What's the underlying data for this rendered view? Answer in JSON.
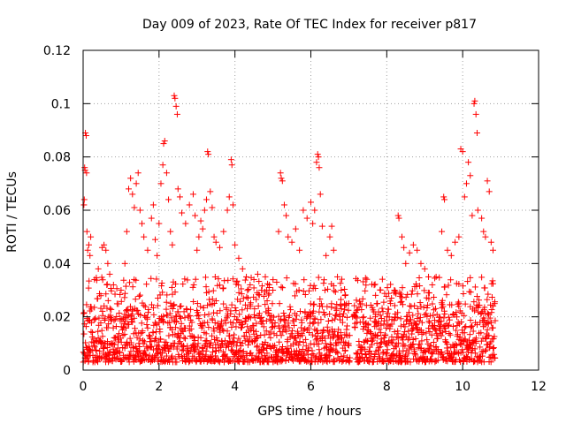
{
  "chart_data": {
    "type": "scatter",
    "title": "Day 009 of 2023, Rate Of TEC Index for receiver p817",
    "xlabel": "GPS time / hours",
    "ylabel": "ROTI / TECUs",
    "xlim": [
      0,
      12
    ],
    "ylim": [
      0,
      0.12
    ],
    "xticks": [
      0,
      2,
      4,
      6,
      8,
      10,
      12
    ],
    "xtick_labels": [
      "0",
      "2",
      "4",
      "6",
      "8",
      "10",
      "12"
    ],
    "yticks": [
      0,
      0.02,
      0.04,
      0.06,
      0.08,
      0.1,
      0.12
    ],
    "ytick_labels": [
      "0",
      "0.02",
      "0.04",
      "0.06",
      "0.08",
      "0.1",
      "0.12"
    ],
    "grid": true,
    "marker": "+",
    "color": "#ff0000",
    "series": [
      {
        "name": "ROTI",
        "points": [
          [
            0.02,
            0.062
          ],
          [
            0.03,
            0.064
          ],
          [
            0.04,
            0.076
          ],
          [
            0.05,
            0.075
          ],
          [
            0.06,
            0.089
          ],
          [
            0.08,
            0.088
          ],
          [
            0.09,
            0.074
          ],
          [
            0.1,
            0.052
          ],
          [
            0.12,
            0.045
          ],
          [
            0.15,
            0.047
          ],
          [
            0.18,
            0.043
          ],
          [
            0.2,
            0.05
          ],
          [
            0.3,
            0.034
          ],
          [
            0.4,
            0.038
          ],
          [
            0.5,
            0.046
          ],
          [
            0.55,
            0.047
          ],
          [
            0.6,
            0.045
          ],
          [
            0.65,
            0.04
          ],
          [
            0.7,
            0.036
          ],
          [
            0.8,
            0.032
          ],
          [
            1.0,
            0.03
          ],
          [
            1.1,
            0.04
          ],
          [
            1.15,
            0.052
          ],
          [
            1.2,
            0.068
          ],
          [
            1.25,
            0.072
          ],
          [
            1.3,
            0.066
          ],
          [
            1.35,
            0.061
          ],
          [
            1.4,
            0.07
          ],
          [
            1.45,
            0.074
          ],
          [
            1.5,
            0.06
          ],
          [
            1.55,
            0.055
          ],
          [
            1.6,
            0.05
          ],
          [
            1.7,
            0.045
          ],
          [
            1.8,
            0.057
          ],
          [
            1.85,
            0.062
          ],
          [
            1.9,
            0.049
          ],
          [
            1.95,
            0.043
          ],
          [
            2.0,
            0.055
          ],
          [
            2.05,
            0.07
          ],
          [
            2.1,
            0.077
          ],
          [
            2.12,
            0.085
          ],
          [
            2.15,
            0.086
          ],
          [
            2.2,
            0.074
          ],
          [
            2.25,
            0.064
          ],
          [
            2.3,
            0.052
          ],
          [
            2.35,
            0.047
          ],
          [
            2.4,
            0.103
          ],
          [
            2.42,
            0.102
          ],
          [
            2.45,
            0.099
          ],
          [
            2.48,
            0.096
          ],
          [
            2.5,
            0.068
          ],
          [
            2.55,
            0.065
          ],
          [
            2.6,
            0.059
          ],
          [
            2.7,
            0.055
          ],
          [
            2.8,
            0.062
          ],
          [
            2.9,
            0.066
          ],
          [
            2.95,
            0.058
          ],
          [
            3.0,
            0.045
          ],
          [
            3.05,
            0.05
          ],
          [
            3.1,
            0.056
          ],
          [
            3.15,
            0.053
          ],
          [
            3.2,
            0.06
          ],
          [
            3.25,
            0.064
          ],
          [
            3.28,
            0.082
          ],
          [
            3.3,
            0.081
          ],
          [
            3.35,
            0.067
          ],
          [
            3.4,
            0.061
          ],
          [
            3.45,
            0.05
          ],
          [
            3.5,
            0.048
          ],
          [
            3.6,
            0.046
          ],
          [
            3.7,
            0.052
          ],
          [
            3.8,
            0.06
          ],
          [
            3.85,
            0.065
          ],
          [
            3.9,
            0.079
          ],
          [
            3.92,
            0.077
          ],
          [
            3.95,
            0.062
          ],
          [
            4.0,
            0.047
          ],
          [
            4.1,
            0.042
          ],
          [
            4.2,
            0.038
          ],
          [
            4.3,
            0.035
          ],
          [
            4.4,
            0.032
          ],
          [
            4.5,
            0.034
          ],
          [
            4.6,
            0.036
          ],
          [
            4.7,
            0.03
          ],
          [
            4.8,
            0.035
          ],
          [
            4.9,
            0.031
          ],
          [
            5.0,
            0.03
          ],
          [
            5.1,
            0.033
          ],
          [
            5.15,
            0.052
          ],
          [
            5.2,
            0.074
          ],
          [
            5.22,
            0.072
          ],
          [
            5.25,
            0.071
          ],
          [
            5.3,
            0.062
          ],
          [
            5.35,
            0.058
          ],
          [
            5.4,
            0.05
          ],
          [
            5.5,
            0.048
          ],
          [
            5.6,
            0.053
          ],
          [
            5.7,
            0.045
          ],
          [
            5.8,
            0.06
          ],
          [
            5.9,
            0.057
          ],
          [
            6.0,
            0.063
          ],
          [
            6.05,
            0.055
          ],
          [
            6.1,
            0.06
          ],
          [
            6.15,
            0.078
          ],
          [
            6.18,
            0.081
          ],
          [
            6.2,
            0.08
          ],
          [
            6.22,
            0.076
          ],
          [
            6.25,
            0.066
          ],
          [
            6.3,
            0.054
          ],
          [
            6.4,
            0.043
          ],
          [
            6.5,
            0.05
          ],
          [
            6.55,
            0.054
          ],
          [
            6.6,
            0.045
          ],
          [
            6.7,
            0.035
          ],
          [
            6.8,
            0.03
          ],
          [
            6.9,
            0.028
          ],
          [
            7.0,
            0.025
          ],
          [
            7.1,
            0.02
          ],
          [
            7.3,
            0.018
          ],
          [
            7.5,
            0.015
          ],
          [
            7.7,
            0.02
          ],
          [
            7.9,
            0.022
          ],
          [
            8.0,
            0.02
          ],
          [
            8.1,
            0.025
          ],
          [
            8.2,
            0.03
          ],
          [
            8.3,
            0.058
          ],
          [
            8.32,
            0.057
          ],
          [
            8.4,
            0.05
          ],
          [
            8.45,
            0.046
          ],
          [
            8.5,
            0.04
          ],
          [
            8.6,
            0.044
          ],
          [
            8.7,
            0.047
          ],
          [
            8.8,
            0.045
          ],
          [
            8.9,
            0.04
          ],
          [
            9.0,
            0.038
          ],
          [
            9.1,
            0.035
          ],
          [
            9.2,
            0.032
          ],
          [
            9.3,
            0.035
          ],
          [
            9.45,
            0.052
          ],
          [
            9.5,
            0.065
          ],
          [
            9.52,
            0.064
          ],
          [
            9.6,
            0.045
          ],
          [
            9.7,
            0.043
          ],
          [
            9.8,
            0.048
          ],
          [
            9.9,
            0.05
          ],
          [
            9.95,
            0.083
          ],
          [
            10.0,
            0.082
          ],
          [
            10.05,
            0.065
          ],
          [
            10.1,
            0.07
          ],
          [
            10.15,
            0.078
          ],
          [
            10.2,
            0.073
          ],
          [
            10.25,
            0.058
          ],
          [
            10.3,
            0.1
          ],
          [
            10.32,
            0.101
          ],
          [
            10.35,
            0.096
          ],
          [
            10.38,
            0.089
          ],
          [
            10.4,
            0.06
          ],
          [
            10.5,
            0.057
          ],
          [
            10.55,
            0.052
          ],
          [
            10.6,
            0.05
          ],
          [
            10.65,
            0.071
          ],
          [
            10.7,
            0.067
          ],
          [
            10.75,
            0.048
          ],
          [
            10.8,
            0.045
          ]
        ]
      }
    ],
    "data_gap_hours": [
      7.02,
      7.12
    ],
    "data_end_hours": 10.85,
    "baseline_band": [
      0.003,
      0.025
    ]
  }
}
